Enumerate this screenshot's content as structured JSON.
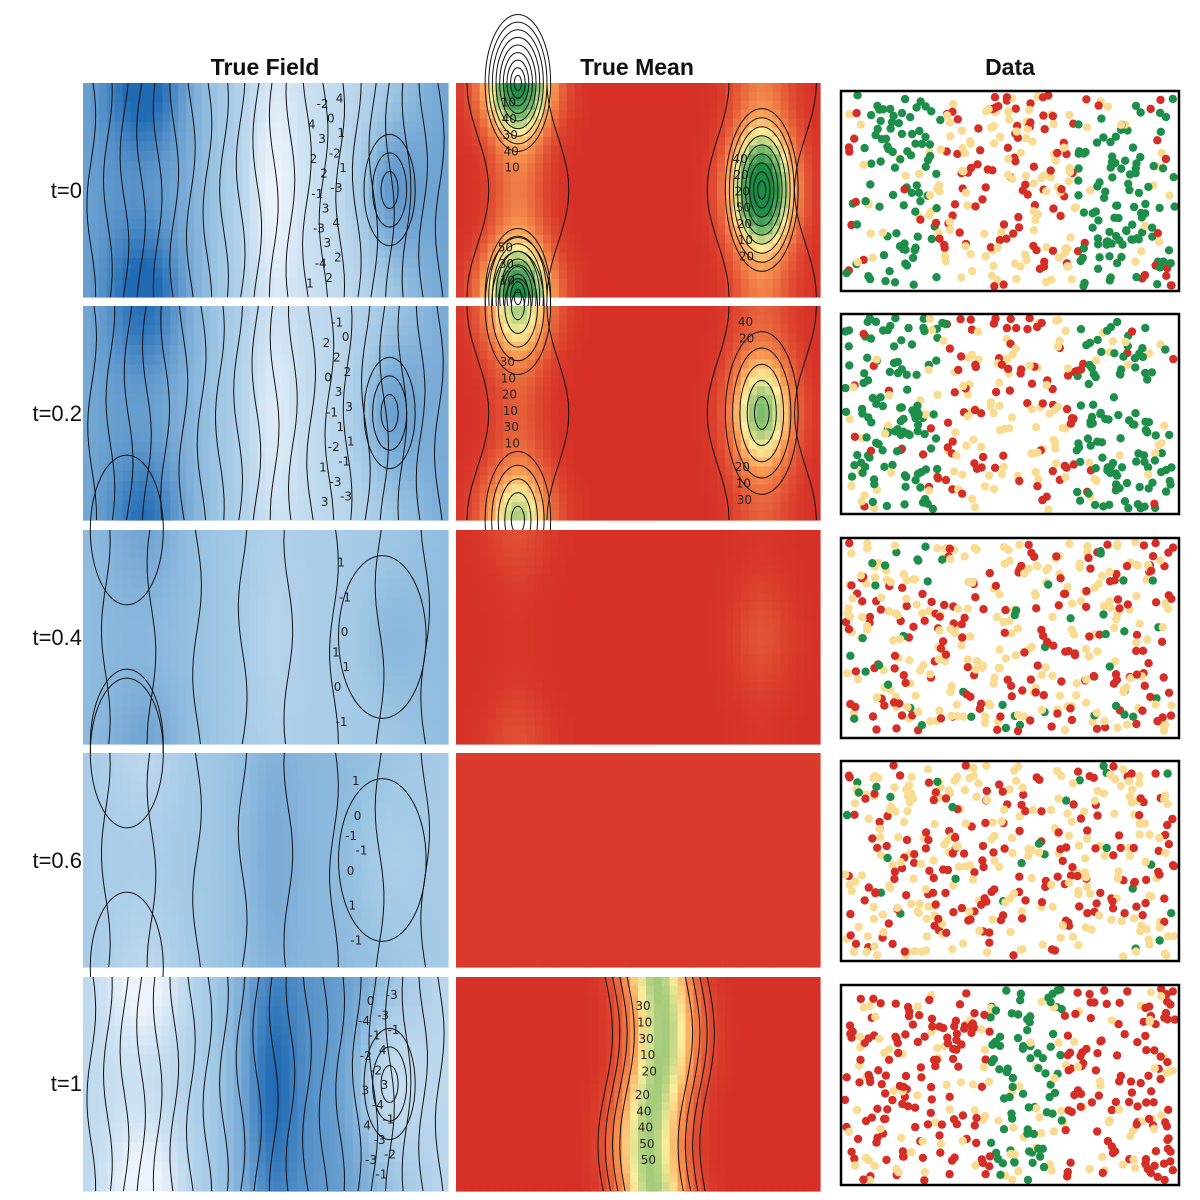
{
  "chart_data": {
    "type": "heatmap",
    "columns": [
      "True Field",
      "True Mean",
      "Data"
    ],
    "rows": [
      {
        "label": "t=0",
        "t": 0
      },
      {
        "label": "t=0.2",
        "t": 0.2
      },
      {
        "label": "t=0.4",
        "t": 0.4
      },
      {
        "label": "t=0.6",
        "t": 0.6
      },
      {
        "label": "t=1",
        "t": 1
      }
    ],
    "true_field": {
      "colormap": "blues",
      "row_amplitude": [
        1.0,
        0.8,
        0.3,
        -0.3,
        -1.0
      ],
      "contour_labels": [
        [
          "1",
          "4",
          "2",
          "-1",
          "-3",
          "-4",
          "-2",
          "3",
          "2",
          "3",
          "3",
          "2",
          "0",
          "-2",
          "-3",
          "4",
          "2",
          "4",
          "1",
          "1"
        ],
        [
          "1",
          "3",
          "2",
          "0",
          "-1",
          "-2",
          "-3",
          "-1",
          "2",
          "3",
          "1",
          "-1",
          "-3",
          "0",
          "2",
          "3",
          "1"
        ],
        [
          "1",
          "0",
          "-1",
          "1",
          "-1",
          "0",
          "1"
        ],
        [
          "-1",
          "0",
          "1",
          "-1",
          "1",
          "0",
          "-1"
        ],
        [
          "-4",
          "-2",
          "3",
          "4",
          "-3",
          "0",
          "-1",
          "-2",
          "-4",
          "-3",
          "-1",
          "-3",
          "4",
          "3",
          "-1",
          "-2",
          "-3",
          "-1"
        ]
      ]
    },
    "true_mean": {
      "colormap": "red-yellow-green",
      "contour_labels": [
        [
          "50",
          "40",
          "30",
          "20",
          "10",
          "20",
          "10",
          "50",
          "40",
          "20",
          "30",
          "10",
          "40",
          "20",
          "10"
        ],
        [
          "30",
          "20",
          "10",
          "10",
          "20",
          "30",
          "10",
          "40",
          "30",
          "20",
          "10"
        ],
        [],
        [],
        [
          "20",
          "30",
          "40",
          "10",
          "40",
          "30",
          "50",
          "10",
          "50",
          "20"
        ]
      ]
    },
    "data": {
      "category_colors": {
        "high": "#1e8f4a",
        "mid": "#f9dc91",
        "low": "#d42e27"
      },
      "points_per_panel": 420
    }
  }
}
